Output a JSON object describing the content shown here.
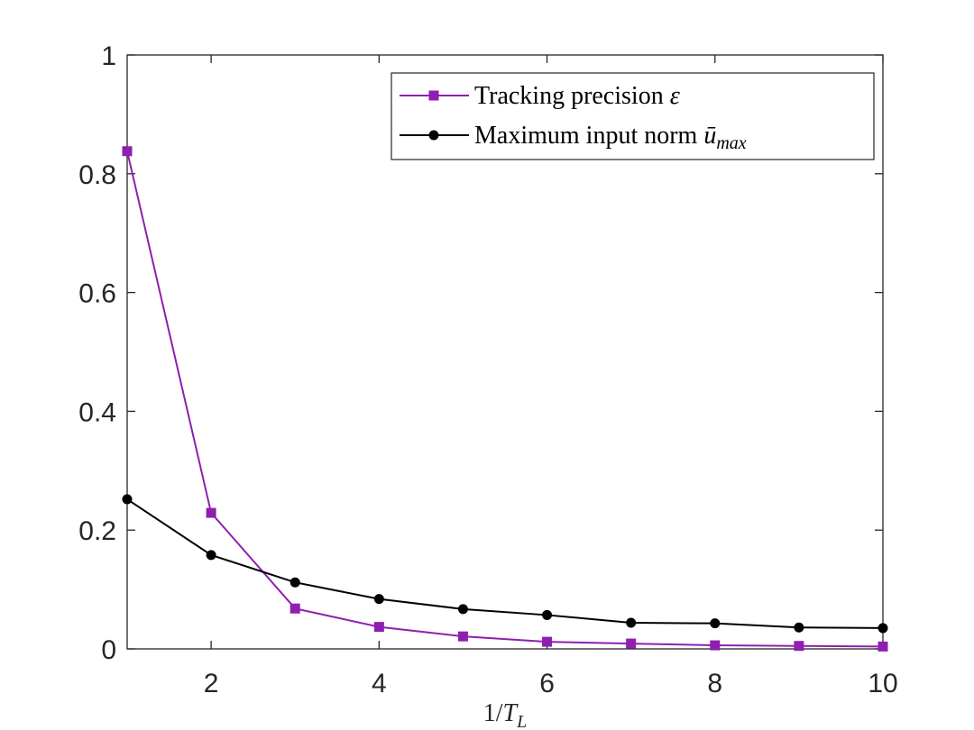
{
  "chart_data": {
    "type": "line",
    "xlabel": "1/T_L",
    "xlabel_parts": {
      "main": "1/",
      "var": "T",
      "sub": "L"
    },
    "xlim": [
      1,
      10
    ],
    "ylim": [
      0,
      1
    ],
    "xticks": [
      2,
      4,
      6,
      8,
      10
    ],
    "yticks": [
      0,
      0.2,
      0.4,
      0.6,
      0.8,
      1
    ],
    "xtick_labels": [
      "2",
      "4",
      "6",
      "8",
      "10"
    ],
    "ytick_labels": [
      "0",
      "0.2",
      "0.4",
      "0.6",
      "0.8",
      "1"
    ],
    "grid": false,
    "legend_position": "top-right",
    "series": [
      {
        "name": "Tracking precision ε",
        "legend_text": "Tracking precision ",
        "legend_symbol": "ε",
        "color": "#8e1fb0",
        "marker": "square",
        "x": [
          1,
          2,
          3,
          4,
          5,
          6,
          7,
          8,
          9,
          10
        ],
        "y": [
          0.838,
          0.229,
          0.068,
          0.037,
          0.021,
          0.012,
          0.009,
          0.006,
          0.005,
          0.004
        ]
      },
      {
        "name": "Maximum input norm ū_max",
        "legend_text": "Maximum input norm ",
        "legend_symbol": "ū",
        "legend_subscript": "max",
        "color": "#000000",
        "marker": "circle",
        "x": [
          1,
          2,
          3,
          4,
          5,
          6,
          7,
          8,
          9,
          10
        ],
        "y": [
          0.252,
          0.158,
          0.112,
          0.084,
          0.067,
          0.057,
          0.044,
          0.043,
          0.036,
          0.035
        ]
      }
    ]
  }
}
